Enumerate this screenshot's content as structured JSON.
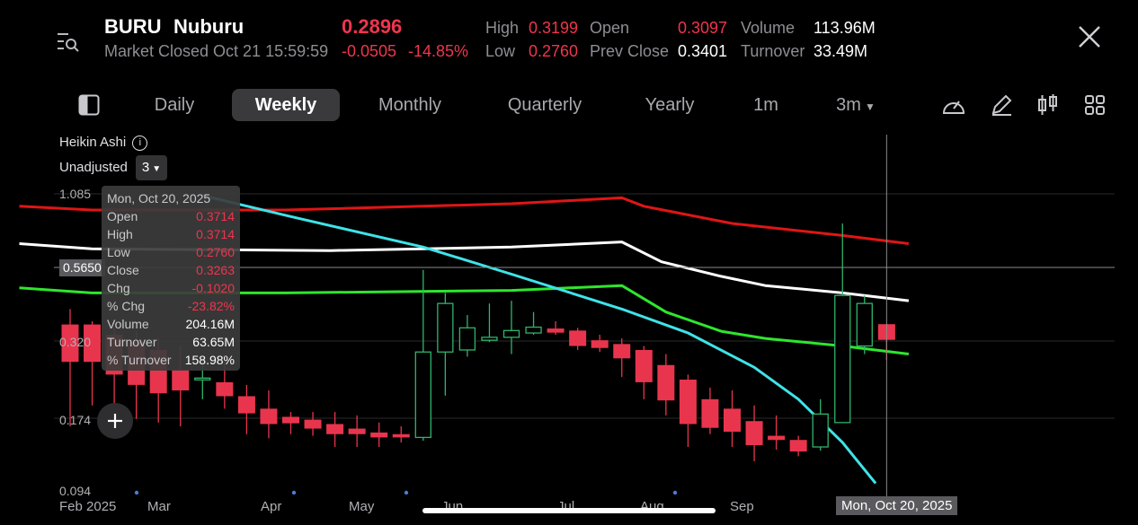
{
  "header": {
    "ticker": "BURU",
    "name": "Nuburu",
    "price": "0.2896",
    "status": "Market Closed Oct 21 15:59:59",
    "change": "-0.0505",
    "change_pct": "-14.85%",
    "high_label": "High",
    "high": "0.3199",
    "low_label": "Low",
    "low": "0.2760",
    "open_label": "Open",
    "open": "0.3097",
    "prev_close_label": "Prev Close",
    "prev_close": "0.3401",
    "volume_label": "Volume",
    "volume": "113.96M",
    "turnover_label": "Turnover",
    "turnover": "33.49M"
  },
  "tabs": [
    "Daily",
    "Weekly",
    "Monthly",
    "Quarterly",
    "Yearly",
    "1m",
    "3m"
  ],
  "active_tab": "Weekly",
  "indicator": {
    "name": "Heikin Ashi",
    "adjust": "Unadjusted",
    "period": "3"
  },
  "tooltip": {
    "date": "Mon, Oct 20, 2025",
    "rows": [
      {
        "label": "Open",
        "value": "0.3714"
      },
      {
        "label": "High",
        "value": "0.3714"
      },
      {
        "label": "Low",
        "value": "0.2760"
      },
      {
        "label": "Close",
        "value": "0.3263"
      },
      {
        "label": "Chg",
        "value": "-0.1020"
      },
      {
        "label": "% Chg",
        "value": "-23.82%"
      },
      {
        "label": "Volume",
        "value": "204.16M"
      },
      {
        "label": "Turnover",
        "value": "63.65M"
      },
      {
        "label": "% Turnover",
        "value": "158.98%"
      }
    ]
  },
  "crosshair": {
    "price_label": "0.5650",
    "date_label": "Mon, Oct 20, 2025"
  },
  "colors": {
    "up": "#2fb56b",
    "down": "#e8354d",
    "bb_upper": "#e01515",
    "bb_mid": "#ffffff",
    "bb_lower": "#2ee62e",
    "trend": "#3fe3e8"
  },
  "chart_data": {
    "type": "candlestick",
    "scale": "log",
    "y_ticks": [
      "1.085",
      "0.320",
      "0.174",
      "0.094"
    ],
    "x_ticks": [
      "Feb 2025",
      "Mar",
      "Apr",
      "May",
      "Jun",
      "Jul",
      "Aug",
      "Sep"
    ],
    "candles": [
      {
        "o": 0.37,
        "c": 0.272,
        "h": 0.42,
        "l": 0.16
      },
      {
        "o": 0.37,
        "c": 0.272,
        "h": 0.38,
        "l": 0.19
      },
      {
        "o": 0.34,
        "c": 0.245,
        "h": 0.36,
        "l": 0.18
      },
      {
        "o": 0.32,
        "c": 0.225,
        "h": 0.35,
        "l": 0.17
      },
      {
        "o": 0.3,
        "c": 0.21,
        "h": 0.33,
        "l": 0.165
      },
      {
        "o": 0.255,
        "c": 0.215,
        "h": 0.31,
        "l": 0.16
      },
      {
        "o": 0.235,
        "c": 0.238,
        "h": 0.28,
        "l": 0.2
      },
      {
        "o": 0.23,
        "c": 0.205,
        "h": 0.28,
        "l": 0.185
      },
      {
        "o": 0.205,
        "c": 0.178,
        "h": 0.225,
        "l": 0.15
      },
      {
        "o": 0.185,
        "c": 0.163,
        "h": 0.215,
        "l": 0.145
      },
      {
        "o": 0.173,
        "c": 0.164,
        "h": 0.18,
        "l": 0.15
      },
      {
        "o": 0.169,
        "c": 0.157,
        "h": 0.18,
        "l": 0.148
      },
      {
        "o": 0.163,
        "c": 0.15,
        "h": 0.18,
        "l": 0.135
      },
      {
        "o": 0.157,
        "c": 0.15,
        "h": 0.175,
        "l": 0.135
      },
      {
        "o": 0.152,
        "c": 0.146,
        "h": 0.165,
        "l": 0.135
      },
      {
        "o": 0.15,
        "c": 0.146,
        "h": 0.16,
        "l": 0.14
      },
      {
        "o": 0.146,
        "c": 0.295,
        "h": 0.58,
        "l": 0.142
      },
      {
        "o": 0.295,
        "c": 0.44,
        "h": 0.48,
        "l": 0.206
      },
      {
        "o": 0.3,
        "c": 0.36,
        "h": 0.4,
        "l": 0.284
      },
      {
        "o": 0.325,
        "c": 0.333,
        "h": 0.44,
        "l": 0.32
      },
      {
        "o": 0.333,
        "c": 0.352,
        "h": 0.45,
        "l": 0.29
      },
      {
        "o": 0.345,
        "c": 0.362,
        "h": 0.41,
        "l": 0.34
      },
      {
        "o": 0.358,
        "c": 0.346,
        "h": 0.38,
        "l": 0.34
      },
      {
        "o": 0.352,
        "c": 0.31,
        "h": 0.36,
        "l": 0.3
      },
      {
        "o": 0.325,
        "c": 0.305,
        "h": 0.34,
        "l": 0.295
      },
      {
        "o": 0.315,
        "c": 0.28,
        "h": 0.33,
        "l": 0.24
      },
      {
        "o": 0.3,
        "c": 0.23,
        "h": 0.31,
        "l": 0.2
      },
      {
        "o": 0.265,
        "c": 0.198,
        "h": 0.29,
        "l": 0.175
      },
      {
        "o": 0.235,
        "c": 0.163,
        "h": 0.245,
        "l": 0.135
      },
      {
        "o": 0.2,
        "c": 0.158,
        "h": 0.22,
        "l": 0.15
      },
      {
        "o": 0.185,
        "c": 0.153,
        "h": 0.215,
        "l": 0.135
      },
      {
        "o": 0.167,
        "c": 0.137,
        "h": 0.19,
        "l": 0.12
      },
      {
        "o": 0.148,
        "c": 0.143,
        "h": 0.175,
        "l": 0.132
      },
      {
        "o": 0.143,
        "c": 0.13,
        "h": 0.148,
        "l": 0.125
      },
      {
        "o": 0.135,
        "c": 0.177,
        "h": 0.2,
        "l": 0.131
      },
      {
        "o": 0.165,
        "c": 0.47,
        "h": 0.85,
        "l": 0.165
      },
      {
        "o": 0.31,
        "c": 0.44,
        "h": 0.47,
        "l": 0.29
      },
      {
        "o": 0.371,
        "c": 0.326,
        "h": 0.371,
        "l": 0.276
      }
    ],
    "series": [
      {
        "name": "upper",
        "points": [
          [
            -2.3,
            0.98
          ],
          [
            0.98,
            0.95
          ],
          [
            9.75,
            0.95
          ],
          [
            20,
            1.0
          ],
          [
            25,
            1.05
          ],
          [
            26,
            0.98
          ],
          [
            30,
            0.85
          ],
          [
            35,
            0.77
          ],
          [
            38,
            0.72
          ]
        ]
      },
      {
        "name": "middle",
        "points": [
          [
            -2.3,
            0.72
          ],
          [
            0.98,
            0.69
          ],
          [
            11.8,
            0.68
          ],
          [
            20,
            0.7
          ],
          [
            25,
            0.73
          ],
          [
            26.8,
            0.62
          ],
          [
            29.5,
            0.55
          ],
          [
            31.5,
            0.51
          ],
          [
            35,
            0.48
          ],
          [
            38,
            0.45
          ]
        ]
      },
      {
        "name": "lower",
        "points": [
          [
            -2.3,
            0.5
          ],
          [
            0.98,
            0.48
          ],
          [
            9.75,
            0.48
          ],
          [
            20,
            0.49
          ],
          [
            25,
            0.51
          ],
          [
            27,
            0.41
          ],
          [
            29.5,
            0.35
          ],
          [
            31.5,
            0.33
          ],
          [
            35,
            0.31
          ],
          [
            38,
            0.29
          ]
        ]
      },
      {
        "name": "trend",
        "points": [
          [
            6,
            1.07
          ],
          [
            10,
            0.9
          ],
          [
            16,
            0.7
          ],
          [
            20,
            0.56
          ],
          [
            25,
            0.42
          ],
          [
            28,
            0.345
          ],
          [
            31,
            0.26
          ],
          [
            33,
            0.2
          ],
          [
            35,
            0.14
          ],
          [
            36.5,
            0.1
          ]
        ]
      }
    ]
  }
}
